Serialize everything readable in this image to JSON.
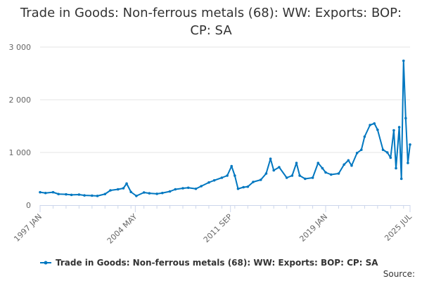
{
  "chart_data": {
    "type": "line",
    "title": "Trade in Goods: Non-ferrous metals (68): WW: Exports: BOP: CP: SA",
    "xlabel": "",
    "ylabel": "",
    "x_range": [
      "1997 JAN",
      "2025 JUL"
    ],
    "x_tick_labels": [
      "1997 JAN",
      "2004 MAY",
      "2011 SEP",
      "2019 JAN",
      "2025 JUL"
    ],
    "y_ticks": [
      0,
      1000,
      2000,
      3000
    ],
    "y_tick_labels": [
      "0",
      "1 000",
      "2 000",
      "3 000"
    ],
    "ylim": [
      0,
      3000
    ],
    "grid": "horizontal",
    "legend_position": "bottom",
    "series_color": "#0077c0",
    "source_label": "Source:",
    "series": [
      {
        "name": "Trade in Goods: Non-ferrous metals (68): WW: Exports: BOP: CP: SA",
        "points": [
          [
            "1997-01",
            245
          ],
          [
            "1997-06",
            230
          ],
          [
            "1998-01",
            245
          ],
          [
            "1998-06",
            210
          ],
          [
            "1999-01",
            205
          ],
          [
            "1999-06",
            195
          ],
          [
            "2000-01",
            200
          ],
          [
            "2000-06",
            185
          ],
          [
            "2001-01",
            180
          ],
          [
            "2001-06",
            175
          ],
          [
            "2002-01",
            210
          ],
          [
            "2002-06",
            280
          ],
          [
            "2003-01",
            300
          ],
          [
            "2003-06",
            320
          ],
          [
            "2003-09",
            410
          ],
          [
            "2004-01",
            250
          ],
          [
            "2004-06",
            175
          ],
          [
            "2005-01",
            240
          ],
          [
            "2005-06",
            225
          ],
          [
            "2006-01",
            215
          ],
          [
            "2006-06",
            230
          ],
          [
            "2007-01",
            260
          ],
          [
            "2007-06",
            300
          ],
          [
            "2008-01",
            320
          ],
          [
            "2008-06",
            330
          ],
          [
            "2009-01",
            310
          ],
          [
            "2009-06",
            360
          ],
          [
            "2010-01",
            430
          ],
          [
            "2010-06",
            470
          ],
          [
            "2011-01",
            520
          ],
          [
            "2011-06",
            560
          ],
          [
            "2011-10",
            740
          ],
          [
            "2012-01",
            560
          ],
          [
            "2012-04",
            310
          ],
          [
            "2012-09",
            340
          ],
          [
            "2013-01",
            350
          ],
          [
            "2013-06",
            440
          ],
          [
            "2014-01",
            480
          ],
          [
            "2014-06",
            600
          ],
          [
            "2014-10",
            880
          ],
          [
            "2015-01",
            660
          ],
          [
            "2015-06",
            720
          ],
          [
            "2016-01",
            520
          ],
          [
            "2016-06",
            560
          ],
          [
            "2016-10",
            800
          ],
          [
            "2017-01",
            560
          ],
          [
            "2017-06",
            500
          ],
          [
            "2018-01",
            520
          ],
          [
            "2018-06",
            800
          ],
          [
            "2018-10",
            700
          ],
          [
            "2019-01",
            620
          ],
          [
            "2019-06",
            580
          ],
          [
            "2020-01",
            600
          ],
          [
            "2020-06",
            770
          ],
          [
            "2020-10",
            850
          ],
          [
            "2021-01",
            750
          ],
          [
            "2021-06",
            990
          ],
          [
            "2021-10",
            1050
          ],
          [
            "2022-01",
            1300
          ],
          [
            "2022-06",
            1520
          ],
          [
            "2022-10",
            1550
          ],
          [
            "2023-01",
            1430
          ],
          [
            "2023-06",
            1050
          ],
          [
            "2023-10",
            1000
          ],
          [
            "2024-01",
            900
          ],
          [
            "2024-04",
            1420
          ],
          [
            "2024-06",
            700
          ],
          [
            "2024-09",
            1480
          ],
          [
            "2024-11",
            500
          ],
          [
            "2025-01",
            2740
          ],
          [
            "2025-03",
            1650
          ],
          [
            "2025-05",
            800
          ],
          [
            "2025-07",
            1150
          ]
        ]
      }
    ]
  }
}
